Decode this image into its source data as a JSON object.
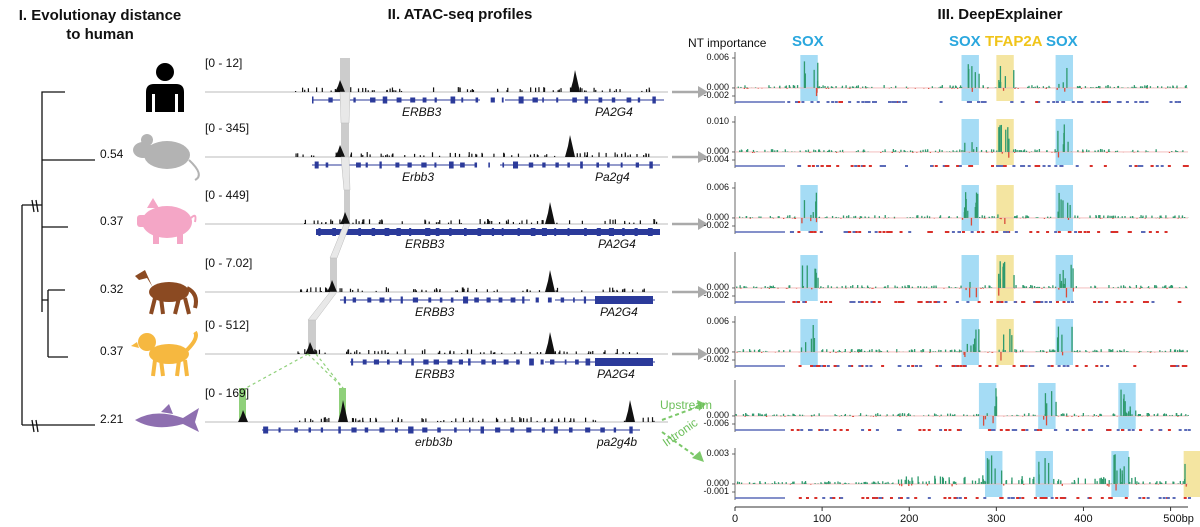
{
  "titles": {
    "section1": "I. Evolutionay distance to human",
    "section1_line1": "I. Evolutionay distance",
    "section1_line2": "to human",
    "section2": "II. ATAC-seq profiles",
    "section3": "III. DeepExplainer"
  },
  "species": [
    {
      "animal": "human",
      "icon": "human-icon",
      "color": "#000000",
      "distance": "",
      "range": "[0 - 12]",
      "gene1": "ERBB3",
      "gene2": "PA2G4"
    },
    {
      "animal": "mouse",
      "icon": "mouse-icon",
      "color": "#b3b3b3",
      "distance": "0.54",
      "range": "[0 - 345]",
      "gene1": "Erbb3",
      "gene2": "Pa2g4"
    },
    {
      "animal": "pig",
      "icon": "pig-icon",
      "color": "#f4a6c6",
      "distance": "0.37",
      "range": "[0 - 449]",
      "gene1": "ERBB3",
      "gene2": "PA2G4"
    },
    {
      "animal": "horse",
      "icon": "horse-icon",
      "color": "#8b4a22",
      "distance": "0.32",
      "range": "[0 - 7.02]",
      "gene1": "ERBB3",
      "gene2": "PA2G4"
    },
    {
      "animal": "dog",
      "icon": "dog-icon",
      "color": "#f6b840",
      "distance": "0.37",
      "range": "[0 - 512]",
      "gene1": "ERBB3",
      "gene2": "PA2G4"
    },
    {
      "animal": "zebrafish",
      "icon": "fish-icon",
      "color": "#8e6fb0",
      "distance": "2.21",
      "range": "[0 - 169]",
      "gene1": "erbb3b",
      "gene2": "pa2g4b"
    }
  ],
  "colors": {
    "gene_track": "#2b3a9a",
    "sox": "#8fd3f2",
    "tfap2a": "#f1df8a",
    "highlight_gray": "#cccccc",
    "highlight_green": "#8fd07a",
    "arrow_green": "#7cc86a",
    "pos_bar": "#2f9a6e",
    "neg_bar": "#d94c3c",
    "dots_blue": "#5b6bb8",
    "dots_red": "#d9302a"
  },
  "deepexplainer": {
    "nt_importance": "NT importance",
    "header_motifs": [
      {
        "label": "SOX",
        "color": "#2aa7de"
      },
      {
        "label": "SOX",
        "color": "#2aa7de"
      },
      {
        "label": "TFAP2A",
        "color": "#f0c419"
      },
      {
        "label": "SOX",
        "color": "#2aa7de"
      }
    ],
    "panels": [
      {
        "ticks": [
          "0.006",
          "0.000",
          "-0.002"
        ]
      },
      {
        "ticks": [
          "0.010",
          "0.000",
          "-0.004"
        ]
      },
      {
        "ticks": [
          "0.006",
          "0.000",
          "-0.002"
        ]
      },
      {
        "ticks": [
          "0.000",
          "-0.002"
        ]
      },
      {
        "ticks": [
          "0.006",
          "0.000",
          "-0.002"
        ]
      },
      {
        "ticks": [
          "0.000",
          "-0.006"
        ]
      },
      {
        "ticks": [
          "0.003",
          "0.000",
          "-0.001"
        ]
      }
    ],
    "x_ticks": [
      "0",
      "100",
      "200",
      "300",
      "400",
      "500bp"
    ],
    "x_values": [
      0,
      100,
      200,
      300,
      400,
      500
    ]
  },
  "arrows": {
    "upstream": "Upstream",
    "intronic": "Intronic"
  }
}
